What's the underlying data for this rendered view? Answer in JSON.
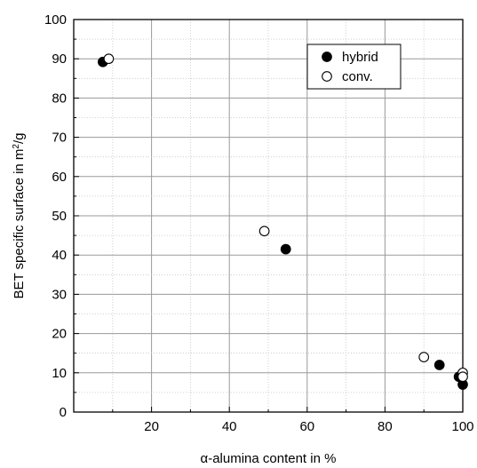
{
  "chart_data": {
    "type": "scatter",
    "xlabel_greek": "α",
    "xlabel_rest": "-alumina content in %",
    "ylabel_main": "BET specific surface in m",
    "ylabel_sup": "2",
    "ylabel_end": "/g",
    "xlim": [
      0,
      100
    ],
    "ylim": [
      0,
      100
    ],
    "xticks": [
      20,
      40,
      60,
      80,
      100
    ],
    "yticks": [
      0,
      10,
      20,
      30,
      40,
      50,
      60,
      70,
      80,
      90,
      100
    ],
    "grid": true,
    "legend_position": "top-right",
    "series": [
      {
        "name": "hybrid",
        "marker": "filled-circle",
        "color": "#000000",
        "x": [
          7.5,
          54.5,
          94,
          99,
          100
        ],
        "y": [
          89.2,
          41.5,
          12,
          9,
          7
        ]
      },
      {
        "name": "conv.",
        "marker": "open-circle",
        "color": "#000000",
        "x": [
          9,
          49,
          90,
          100,
          100
        ],
        "y": [
          90,
          46.1,
          14,
          10,
          9
        ]
      }
    ]
  }
}
